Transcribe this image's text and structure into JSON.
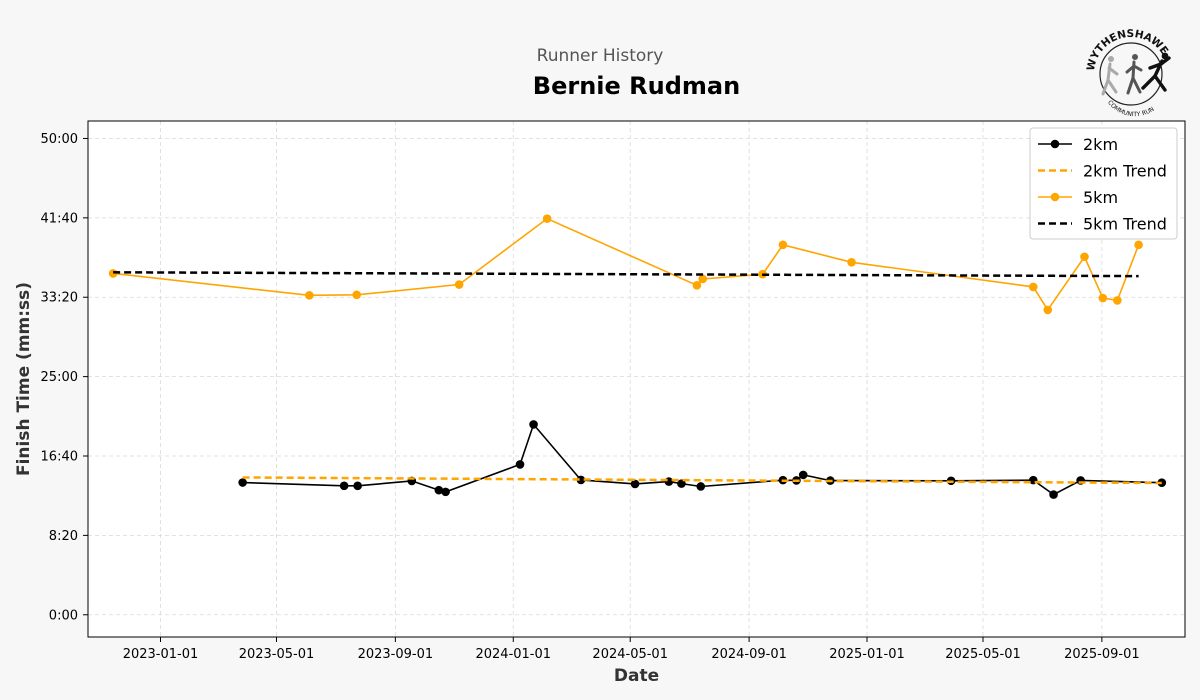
{
  "header": {
    "subtitle": "Runner History",
    "title": "Bernie Rudman"
  },
  "logo": {
    "top_text": "WYTHENSHAWE",
    "bottom_text": "COMMUNITY RUN",
    "icon": "running-figures-logo"
  },
  "colors": {
    "series_2km": "#000000",
    "series_5km": "#FFA500",
    "background": "#f7f7f7",
    "plot_background": "#ffffff",
    "grid": "#d9d9d9"
  },
  "chart_data": {
    "type": "line",
    "xlabel": "Date",
    "ylabel": "Finish Time (mm:ss)",
    "x_is_date": true,
    "xlim": [
      "2022-10-18",
      "2025-11-26"
    ],
    "ylim_seconds": [
      -140,
      3110
    ],
    "x_ticks": [
      "2023-01-01",
      "2023-05-01",
      "2023-09-01",
      "2024-01-01",
      "2024-05-01",
      "2024-09-01",
      "2025-01-01",
      "2025-05-01",
      "2025-09-01"
    ],
    "y_ticks": [
      {
        "seconds": 0,
        "label": "0:00"
      },
      {
        "seconds": 500,
        "label": "8:20"
      },
      {
        "seconds": 1000,
        "label": "16:40"
      },
      {
        "seconds": 1500,
        "label": "25:00"
      },
      {
        "seconds": 2000,
        "label": "33:20"
      },
      {
        "seconds": 2500,
        "label": "41:40"
      },
      {
        "seconds": 3000,
        "label": "50:00"
      }
    ],
    "grid": true,
    "legend_position": "top-right",
    "series": [
      {
        "name": "2km",
        "kind": "line-marker",
        "color": "#000000",
        "points": [
          {
            "x": "2023-03-27",
            "y": 833
          },
          {
            "x": "2023-07-10",
            "y": 812
          },
          {
            "x": "2023-07-24",
            "y": 812
          },
          {
            "x": "2023-09-18",
            "y": 843
          },
          {
            "x": "2023-10-16",
            "y": 785
          },
          {
            "x": "2023-10-23",
            "y": 774
          },
          {
            "x": "2024-01-08",
            "y": 947
          },
          {
            "x": "2024-01-22",
            "y": 1199
          },
          {
            "x": "2024-03-11",
            "y": 849
          },
          {
            "x": "2024-05-06",
            "y": 824
          },
          {
            "x": "2024-06-10",
            "y": 839
          },
          {
            "x": "2024-06-23",
            "y": 826
          },
          {
            "x": "2024-07-13",
            "y": 808
          },
          {
            "x": "2024-10-06",
            "y": 848
          },
          {
            "x": "2024-10-20",
            "y": 846
          },
          {
            "x": "2024-10-27",
            "y": 881
          },
          {
            "x": "2024-11-24",
            "y": 845
          },
          {
            "x": "2025-03-29",
            "y": 844
          },
          {
            "x": "2025-06-22",
            "y": 848
          },
          {
            "x": "2025-07-13",
            "y": 757
          },
          {
            "x": "2025-08-10",
            "y": 846
          },
          {
            "x": "2025-11-02",
            "y": 832
          }
        ]
      },
      {
        "name": "2km Trend",
        "kind": "dashed",
        "color": "#FFA500",
        "points": [
          {
            "x": "2023-03-27",
            "y": 865
          },
          {
            "x": "2025-11-02",
            "y": 830
          }
        ]
      },
      {
        "name": "5km",
        "kind": "line-marker",
        "color": "#FFA500",
        "points": [
          {
            "x": "2022-11-13",
            "y": 2150
          },
          {
            "x": "2023-06-04",
            "y": 2012
          },
          {
            "x": "2023-07-23",
            "y": 2015
          },
          {
            "x": "2023-11-06",
            "y": 2080
          },
          {
            "x": "2024-02-05",
            "y": 2495
          },
          {
            "x": "2024-07-09",
            "y": 2075
          },
          {
            "x": "2024-07-15",
            "y": 2115
          },
          {
            "x": "2024-09-15",
            "y": 2145
          },
          {
            "x": "2024-10-06",
            "y": 2330
          },
          {
            "x": "2024-12-16",
            "y": 2220
          },
          {
            "x": "2025-06-22",
            "y": 2065
          },
          {
            "x": "2025-07-07",
            "y": 1920
          },
          {
            "x": "2025-08-14",
            "y": 2255
          },
          {
            "x": "2025-09-02",
            "y": 1995
          },
          {
            "x": "2025-09-17",
            "y": 1980
          },
          {
            "x": "2025-10-09",
            "y": 2330
          }
        ]
      },
      {
        "name": "5km Trend",
        "kind": "dashed",
        "color": "#000000",
        "points": [
          {
            "x": "2022-11-13",
            "y": 2157
          },
          {
            "x": "2025-10-09",
            "y": 2133
          }
        ]
      }
    ]
  }
}
